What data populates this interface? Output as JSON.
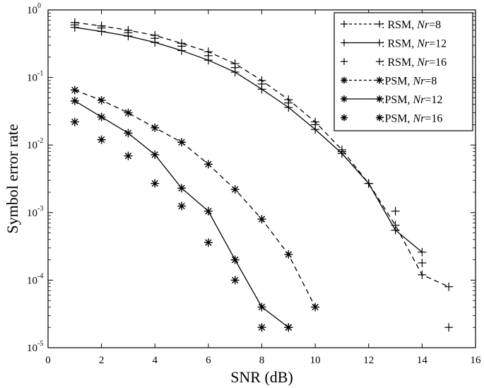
{
  "chart_data": {
    "type": "line",
    "xlabel": "SNR (dB)",
    "ylabel": "Symbol error rate",
    "xlim": [
      0,
      16
    ],
    "ylim": [
      1e-05,
      1
    ],
    "yscale": "log",
    "grid": false,
    "legend_position": "top-right",
    "x_ticks": [
      "0",
      "2",
      "4",
      "6",
      "8",
      "10",
      "12",
      "14",
      "16"
    ],
    "y_ticks": [
      {
        "base": "10",
        "exp": "0"
      },
      {
        "base": "10",
        "exp": "-1"
      },
      {
        "base": "10",
        "exp": "-2"
      },
      {
        "base": "10",
        "exp": "-3"
      },
      {
        "base": "10",
        "exp": "-4"
      },
      {
        "base": "10",
        "exp": "-5"
      }
    ],
    "series": [
      {
        "label_prefix": ": RSM, ",
        "label_italic": "Nr",
        "label_suffix": "=8",
        "marker": "+",
        "line": "dashed",
        "x": [
          1,
          2,
          3,
          4,
          5,
          6,
          7,
          8,
          9,
          10,
          11,
          12,
          13,
          14,
          15
        ],
        "y": [
          0.65,
          0.58,
          0.5,
          0.42,
          0.32,
          0.24,
          0.16,
          0.09,
          0.047,
          0.022,
          0.0085,
          0.0027,
          0.00065,
          0.00012,
          8e-05
        ]
      },
      {
        "label_prefix": ": RSM, ",
        "label_italic": "Nr",
        "label_suffix": "=12",
        "marker": "+",
        "line": "solid",
        "x": [
          1,
          2,
          3,
          4,
          5,
          6,
          7,
          8,
          9,
          10,
          11,
          12,
          13,
          14
        ],
        "y": [
          0.55,
          0.48,
          0.41,
          0.33,
          0.25,
          0.18,
          0.12,
          0.067,
          0.036,
          0.017,
          0.0075,
          0.0027,
          0.00055,
          0.00026
        ]
      },
      {
        "label_prefix": ": RSM, ",
        "label_italic": "Nr",
        "label_suffix": "=16",
        "marker": "+",
        "line": "none",
        "x": [
          1,
          2,
          3,
          4,
          5,
          6,
          7,
          8,
          9,
          10,
          11,
          12,
          13,
          14,
          15
        ],
        "y": [
          0.6,
          0.54,
          0.46,
          0.38,
          0.29,
          0.21,
          0.14,
          0.08,
          0.042,
          0.02,
          0.008,
          0.0027,
          0.00105,
          0.00018,
          2e-05
        ]
      },
      {
        "label_prefix": ":PSM, ",
        "label_italic": "Nr",
        "label_suffix": "=8",
        "marker": "*",
        "line": "dashed",
        "x": [
          1,
          2,
          3,
          4,
          5,
          6,
          7,
          8,
          9,
          10
        ],
        "y": [
          0.065,
          0.046,
          0.03,
          0.018,
          0.011,
          0.0052,
          0.0022,
          0.0008,
          0.00024,
          4e-05
        ]
      },
      {
        "label_prefix": ":PSM, ",
        "label_italic": "Nr",
        "label_suffix": "=12",
        "marker": "*",
        "line": "solid",
        "x": [
          1,
          2,
          3,
          4,
          5,
          6,
          7,
          8,
          9
        ],
        "y": [
          0.045,
          0.026,
          0.015,
          0.0072,
          0.0023,
          0.00105,
          0.0002,
          4e-05,
          2e-05
        ]
      },
      {
        "label_prefix": ":PSM, ",
        "label_italic": "Nr",
        "label_suffix": "=16",
        "marker": "*",
        "line": "none",
        "x": [
          1,
          2,
          3,
          4,
          5,
          6,
          7,
          8,
          9
        ],
        "y": [
          0.022,
          0.012,
          0.0069,
          0.0027,
          0.00125,
          0.00036,
          0.0001,
          2e-05,
          2e-05
        ]
      }
    ]
  }
}
